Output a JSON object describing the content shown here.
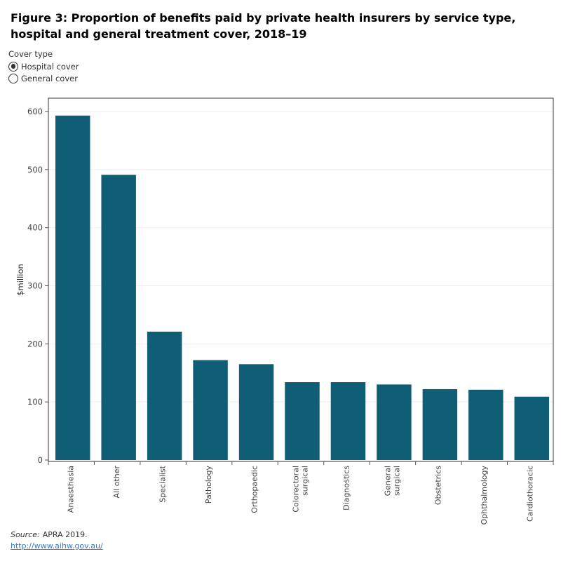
{
  "title": "Figure 3: Proportion of benefits paid by private health insurers by service type, hospital and general treatment cover, 2018–19",
  "legend": {
    "title": "Cover type",
    "options": [
      {
        "label": "Hospital cover",
        "selected": true
      },
      {
        "label": "General cover",
        "selected": false
      }
    ]
  },
  "source": {
    "label": "Source:",
    "text": "APRA 2019.",
    "link": "http://www.aihw.gov.au/"
  },
  "chart_data": {
    "type": "bar",
    "title": "",
    "xlabel": "",
    "ylabel": "$million",
    "ylim": [
      0,
      620
    ],
    "yticks": [
      0,
      100,
      200,
      300,
      400,
      500,
      600
    ],
    "grid": true,
    "bar_color": "#0f5e75",
    "categories": [
      [
        "Anaesthesia"
      ],
      [
        "All other"
      ],
      [
        "Specialist"
      ],
      [
        "Pathology"
      ],
      [
        "Orthopaedic"
      ],
      [
        "Colorectoral",
        "surgical"
      ],
      [
        "Diagnostics"
      ],
      [
        "General",
        "surgical"
      ],
      [
        "Obstetrics"
      ],
      [
        "Ophthalmology"
      ],
      [
        "Cardiothoracic"
      ]
    ],
    "values": [
      593,
      491,
      221,
      172,
      165,
      134,
      134,
      130,
      122,
      121,
      109
    ]
  }
}
